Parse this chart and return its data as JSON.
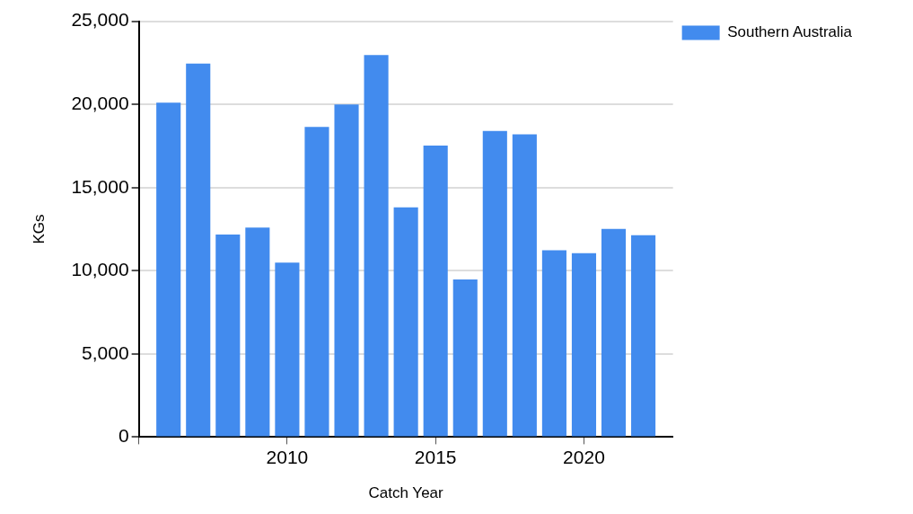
{
  "chart_data": {
    "type": "bar",
    "xlabel": "Catch Year",
    "ylabel": "KGs",
    "x": [
      2006,
      2007,
      2008,
      2009,
      2010,
      2011,
      2012,
      2013,
      2014,
      2015,
      2016,
      2017,
      2018,
      2019,
      2020,
      2021,
      2022
    ],
    "series": [
      {
        "name": "Southern Australia",
        "color": "#428bee",
        "values": [
          20100,
          22450,
          12170,
          12600,
          10490,
          18650,
          20000,
          22970,
          13810,
          17530,
          9480,
          18400,
          18200,
          11230,
          11050,
          12520,
          12140
        ]
      }
    ],
    "xlim": [
      2005,
      2023
    ],
    "xticks": [
      {
        "value": 2005,
        "label": null
      },
      {
        "value": 2010,
        "label": "2010"
      },
      {
        "value": 2015,
        "label": "2015"
      },
      {
        "value": 2020,
        "label": "2020"
      }
    ],
    "ylim": [
      0,
      25000
    ],
    "yticks": [
      0,
      {
        "value": 5000,
        "label": "5,000"
      },
      {
        "value": 10000,
        "label": "10,000"
      },
      {
        "value": 15000,
        "label": "15,000"
      },
      {
        "value": 20000,
        "label": "20,000"
      },
      {
        "value": 25000,
        "label": "25,000"
      }
    ],
    "grid": "y",
    "legend": "top right"
  }
}
